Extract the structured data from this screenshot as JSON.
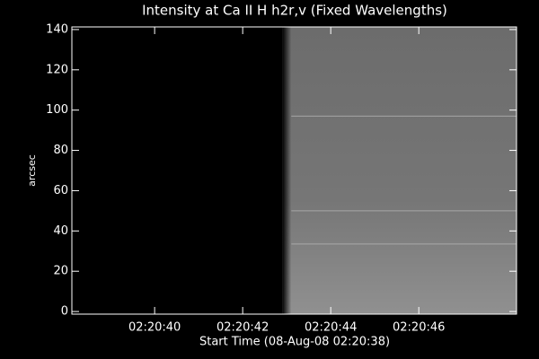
{
  "chart_data": {
    "type": "image",
    "title": "Intensity at Ca II H h2r,v (Fixed Wavelengths)",
    "xlabel": "Start Time (08-Aug-08 02:20:38)",
    "ylabel": "arcsec",
    "xlim": [
      0.12,
      10.22
    ],
    "xticks": [
      {
        "value": 2,
        "label": "02:20:40"
      },
      {
        "value": 4,
        "label": "02:20:42"
      },
      {
        "value": 6,
        "label": "02:20:44"
      },
      {
        "value": 8,
        "label": "02:20:46"
      }
    ],
    "ylim": [
      -1.3,
      141.3
    ],
    "yticks": [
      0,
      20,
      40,
      60,
      80,
      100,
      120,
      140
    ],
    "data_start_x": 4.9,
    "bright_rows_y": [
      50,
      33.5,
      97
    ]
  }
}
